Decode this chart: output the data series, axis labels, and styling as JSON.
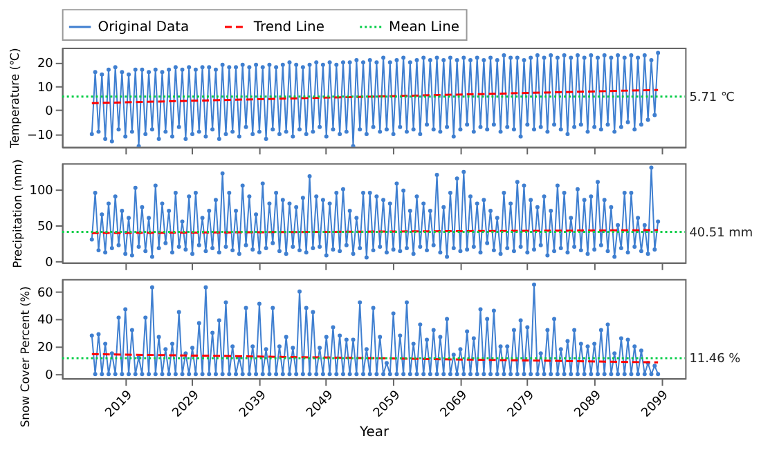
{
  "chart_data": [
    {
      "type": "line",
      "ylabel": "Temperature (℃)",
      "xlim": [
        2009.6,
        2102.6
      ],
      "xticks": [
        2019,
        2029,
        2039,
        2049,
        2059,
        2069,
        2079,
        2089,
        2099
      ],
      "ylim": [
        -15.3,
        26.2
      ],
      "yticks": [
        -10,
        0,
        10,
        20
      ],
      "tick_labels": "y",
      "legend": "top",
      "x": [
        2014.05,
        2014.55,
        2015.05,
        2015.55,
        2016.05,
        2016.55,
        2017.05,
        2017.55,
        2018.05,
        2018.55,
        2019.05,
        2019.55,
        2020.05,
        2020.55,
        2021.05,
        2021.55,
        2022.05,
        2022.55,
        2023.05,
        2023.55,
        2024.05,
        2024.55,
        2025.05,
        2025.55,
        2026.05,
        2026.55,
        2027.05,
        2027.55,
        2028.05,
        2028.55,
        2029.05,
        2029.55,
        2030.05,
        2030.55,
        2031.05,
        2031.55,
        2032.05,
        2032.55,
        2033.05,
        2033.55,
        2034.05,
        2034.55,
        2035.05,
        2035.55,
        2036.05,
        2036.55,
        2037.05,
        2037.55,
        2038.05,
        2038.55,
        2039.05,
        2039.55,
        2040.05,
        2040.55,
        2041.05,
        2041.55,
        2042.05,
        2042.55,
        2043.05,
        2043.55,
        2044.05,
        2044.55,
        2045.05,
        2045.55,
        2046.05,
        2046.55,
        2047.05,
        2047.55,
        2048.05,
        2048.55,
        2049.05,
        2049.55,
        2050.05,
        2050.55,
        2051.05,
        2051.55,
        2052.05,
        2052.55,
        2053.05,
        2053.55,
        2054.05,
        2054.55,
        2055.05,
        2055.55,
        2056.05,
        2056.55,
        2057.05,
        2057.55,
        2058.05,
        2058.55,
        2059.05,
        2059.55,
        2060.05,
        2060.55,
        2061.05,
        2061.55,
        2062.05,
        2062.55,
        2063.05,
        2063.55,
        2064.05,
        2064.55,
        2065.05,
        2065.55,
        2066.05,
        2066.55,
        2067.05,
        2067.55,
        2068.05,
        2068.55,
        2069.05,
        2069.55,
        2070.05,
        2070.55,
        2071.05,
        2071.55,
        2072.05,
        2072.55,
        2073.05,
        2073.55,
        2074.05,
        2074.55,
        2075.05,
        2075.55,
        2076.05,
        2076.55,
        2077.05,
        2077.55,
        2078.05,
        2078.55,
        2079.05,
        2079.55,
        2080.05,
        2080.55,
        2081.05,
        2081.55,
        2082.05,
        2082.55,
        2083.05,
        2083.55,
        2084.05,
        2084.55,
        2085.05,
        2085.55,
        2086.05,
        2086.55,
        2087.05,
        2087.55,
        2088.05,
        2088.55,
        2089.05,
        2089.55,
        2090.05,
        2090.55,
        2091.05,
        2091.55,
        2092.05,
        2092.55,
        2093.05,
        2093.55,
        2094.05,
        2094.55,
        2095.05,
        2095.55,
        2096.05,
        2096.55,
        2097.05,
        2097.55,
        2098.05,
        2098.55
      ],
      "series": [
        {
          "name": "Original Data",
          "color": "#3f7fd0",
          "marker": "circle",
          "line_style": "solid",
          "values": [
            -10,
            16,
            -9,
            15,
            -12,
            17,
            -13,
            18,
            -8,
            16,
            -11,
            15,
            -9,
            17,
            -15,
            17,
            -10,
            16,
            -8,
            17,
            -12,
            16,
            -9,
            17,
            -11,
            18,
            -7,
            17,
            -12,
            18,
            -10,
            17,
            -9,
            18,
            -11,
            18,
            -8,
            17,
            -12,
            19,
            -10,
            18,
            -9,
            18,
            -11,
            19,
            -7,
            18,
            -10,
            19,
            -9,
            18,
            -12,
            19,
            -8,
            18,
            -10,
            19,
            -9,
            20,
            -11,
            19,
            -8,
            18,
            -10,
            19,
            -9,
            20,
            -7,
            19,
            -11,
            20,
            -8,
            19,
            -10,
            20,
            -9,
            20,
            -15,
            21,
            -8,
            20,
            -10,
            21,
            -7,
            20,
            -9,
            22,
            -8,
            20,
            -10,
            21,
            -7,
            22,
            -9,
            20,
            -8,
            21,
            -10,
            22,
            -6,
            21,
            -8,
            22,
            -9,
            21,
            -7,
            22,
            -11,
            21,
            -8,
            22,
            -6,
            21,
            -9,
            22,
            -7,
            21,
            -8,
            22,
            -6,
            21,
            -9,
            23,
            -7,
            22,
            -8,
            22,
            -11,
            21,
            -6,
            22,
            -8,
            23,
            -7,
            22,
            -9,
            23,
            -6,
            22,
            -8,
            23,
            -10,
            22,
            -7,
            23,
            -6,
            22,
            -9,
            23,
            -7,
            22,
            -8,
            23,
            -6,
            22,
            -9,
            23,
            -7,
            22,
            -5,
            23,
            -8,
            22,
            -6,
            23,
            -4,
            21,
            -2,
            24
          ]
        },
        {
          "name": "Trend Line",
          "color": "#ff0000",
          "line_style": "dashed",
          "x": [
            2014.05,
            2098.55
          ],
          "values": [
            3.0,
            8.5
          ]
        },
        {
          "name": "Mean Line",
          "color": "#00cc44",
          "line_style": "dotted",
          "x": [
            2009.6,
            2102.6
          ],
          "values": [
            5.71,
            5.71
          ]
        }
      ],
      "annotations": [
        "5.71 ℃"
      ]
    },
    {
      "type": "line",
      "ylabel": "Precipitation (mm)",
      "xlim": [
        2009.6,
        2102.6
      ],
      "xticks": [
        2019,
        2029,
        2039,
        2049,
        2059,
        2069,
        2079,
        2089,
        2099
      ],
      "ylim": [
        -2,
        136
      ],
      "yticks": [
        0,
        50,
        100
      ],
      "tick_labels": "y",
      "x": [
        2014.05,
        2014.55,
        2015.05,
        2015.55,
        2016.05,
        2016.55,
        2017.05,
        2017.55,
        2018.05,
        2018.55,
        2019.05,
        2019.55,
        2020.05,
        2020.55,
        2021.05,
        2021.55,
        2022.05,
        2022.55,
        2023.05,
        2023.55,
        2024.05,
        2024.55,
        2025.05,
        2025.55,
        2026.05,
        2026.55,
        2027.05,
        2027.55,
        2028.05,
        2028.55,
        2029.05,
        2029.55,
        2030.05,
        2030.55,
        2031.05,
        2031.55,
        2032.05,
        2032.55,
        2033.05,
        2033.55,
        2034.05,
        2034.55,
        2035.05,
        2035.55,
        2036.05,
        2036.55,
        2037.05,
        2037.55,
        2038.05,
        2038.55,
        2039.05,
        2039.55,
        2040.05,
        2040.55,
        2041.05,
        2041.55,
        2042.05,
        2042.55,
        2043.05,
        2043.55,
        2044.05,
        2044.55,
        2045.05,
        2045.55,
        2046.05,
        2046.55,
        2047.05,
        2047.55,
        2048.05,
        2048.55,
        2049.05,
        2049.55,
        2050.05,
        2050.55,
        2051.05,
        2051.55,
        2052.05,
        2052.55,
        2053.05,
        2053.55,
        2054.05,
        2054.55,
        2055.05,
        2055.55,
        2056.05,
        2056.55,
        2057.05,
        2057.55,
        2058.05,
        2058.55,
        2059.05,
        2059.55,
        2060.05,
        2060.55,
        2061.05,
        2061.55,
        2062.05,
        2062.55,
        2063.05,
        2063.55,
        2064.05,
        2064.55,
        2065.05,
        2065.55,
        2066.05,
        2066.55,
        2067.05,
        2067.55,
        2068.05,
        2068.55,
        2069.05,
        2069.55,
        2070.05,
        2070.55,
        2071.05,
        2071.55,
        2072.05,
        2072.55,
        2073.05,
        2073.55,
        2074.05,
        2074.55,
        2075.05,
        2075.55,
        2076.05,
        2076.55,
        2077.05,
        2077.55,
        2078.05,
        2078.55,
        2079.05,
        2079.55,
        2080.05,
        2080.55,
        2081.05,
        2081.55,
        2082.05,
        2082.55,
        2083.05,
        2083.55,
        2084.05,
        2084.55,
        2085.05,
        2085.55,
        2086.05,
        2086.55,
        2087.05,
        2087.55,
        2088.05,
        2088.55,
        2089.05,
        2089.55,
        2090.05,
        2090.55,
        2091.05,
        2091.55,
        2092.05,
        2092.55,
        2093.05,
        2093.55,
        2094.05,
        2094.55,
        2095.05,
        2095.55,
        2096.05,
        2096.55,
        2097.05,
        2097.55,
        2098.05,
        2098.55
      ],
      "series": [
        {
          "color": "#3f7fd0",
          "marker": "circle",
          "line_style": "solid",
          "values": [
            30,
            95,
            15,
            65,
            12,
            80,
            18,
            90,
            22,
            70,
            10,
            60,
            8,
            102,
            20,
            75,
            14,
            60,
            6,
            105,
            18,
            80,
            25,
            70,
            12,
            95,
            20,
            55,
            16,
            90,
            10,
            95,
            22,
            60,
            14,
            70,
            18,
            85,
            12,
            122,
            20,
            95,
            15,
            70,
            10,
            105,
            22,
            90,
            16,
            65,
            12,
            108,
            18,
            80,
            25,
            95,
            14,
            85,
            10,
            80,
            20,
            75,
            15,
            88,
            12,
            118,
            18,
            90,
            20,
            85,
            8,
            80,
            16,
            95,
            14,
            100,
            22,
            70,
            10,
            60,
            18,
            95,
            5,
            95,
            15,
            90,
            20,
            85,
            12,
            80,
            16,
            108,
            14,
            98,
            18,
            70,
            10,
            90,
            20,
            80,
            15,
            70,
            22,
            120,
            12,
            75,
            6,
            95,
            18,
            115,
            14,
            124,
            16,
            90,
            20,
            80,
            12,
            85,
            25,
            70,
            15,
            60,
            10,
            95,
            18,
            80,
            14,
            110,
            20,
            105,
            12,
            85,
            16,
            75,
            22,
            90,
            8,
            70,
            14,
            105,
            18,
            95,
            12,
            60,
            20,
            100,
            15,
            85,
            10,
            90,
            16,
            110,
            22,
            85,
            14,
            75,
            6,
            50,
            18,
            95,
            12,
            95,
            20,
            60,
            14,
            50,
            10,
            130,
            16,
            55
          ]
        },
        {
          "color": "#ff0000",
          "line_style": "dashed",
          "x": [
            2014.05,
            2098.55
          ],
          "values": [
            39,
            43
          ]
        },
        {
          "color": "#00cc44",
          "line_style": "dotted",
          "x": [
            2009.6,
            2102.6
          ],
          "values": [
            40.51,
            40.51
          ]
        }
      ],
      "annotations": [
        "40.51 mm"
      ]
    },
    {
      "type": "line",
      "ylabel": "Snow Cover Percent (%)",
      "xlabel": "Year",
      "xlim": [
        2009.6,
        2102.6
      ],
      "xticks": [
        2019,
        2029,
        2039,
        2049,
        2059,
        2069,
        2079,
        2089,
        2099
      ],
      "ylim": [
        -3,
        69
      ],
      "yticks": [
        0,
        20,
        40,
        60
      ],
      "x": [
        2014.05,
        2014.55,
        2015.05,
        2015.55,
        2016.05,
        2016.55,
        2017.05,
        2017.55,
        2018.05,
        2018.55,
        2019.05,
        2019.55,
        2020.05,
        2020.55,
        2021.05,
        2021.55,
        2022.05,
        2022.55,
        2023.05,
        2023.55,
        2024.05,
        2024.55,
        2025.05,
        2025.55,
        2026.05,
        2026.55,
        2027.05,
        2027.55,
        2028.05,
        2028.55,
        2029.05,
        2029.55,
        2030.05,
        2030.55,
        2031.05,
        2031.55,
        2032.05,
        2032.55,
        2033.05,
        2033.55,
        2034.05,
        2034.55,
        2035.05,
        2035.55,
        2036.05,
        2036.55,
        2037.05,
        2037.55,
        2038.05,
        2038.55,
        2039.05,
        2039.55,
        2040.05,
        2040.55,
        2041.05,
        2041.55,
        2042.05,
        2042.55,
        2043.05,
        2043.55,
        2044.05,
        2044.55,
        2045.05,
        2045.55,
        2046.05,
        2046.55,
        2047.05,
        2047.55,
        2048.05,
        2048.55,
        2049.05,
        2049.55,
        2050.05,
        2050.55,
        2051.05,
        2051.55,
        2052.05,
        2052.55,
        2053.05,
        2053.55,
        2054.05,
        2054.55,
        2055.05,
        2055.55,
        2056.05,
        2056.55,
        2057.05,
        2057.55,
        2058.05,
        2058.55,
        2059.05,
        2059.55,
        2060.05,
        2060.55,
        2061.05,
        2061.55,
        2062.05,
        2062.55,
        2063.05,
        2063.55,
        2064.05,
        2064.55,
        2065.05,
        2065.55,
        2066.05,
        2066.55,
        2067.05,
        2067.55,
        2068.05,
        2068.55,
        2069.05,
        2069.55,
        2070.05,
        2070.55,
        2071.05,
        2071.55,
        2072.05,
        2072.55,
        2073.05,
        2073.55,
        2074.05,
        2074.55,
        2075.05,
        2075.55,
        2076.05,
        2076.55,
        2077.05,
        2077.55,
        2078.05,
        2078.55,
        2079.05,
        2079.55,
        2080.05,
        2080.55,
        2081.05,
        2081.55,
        2082.05,
        2082.55,
        2083.05,
        2083.55,
        2084.05,
        2084.55,
        2085.05,
        2085.55,
        2086.05,
        2086.55,
        2087.05,
        2087.55,
        2088.05,
        2088.55,
        2089.05,
        2089.55,
        2090.05,
        2090.55,
        2091.05,
        2091.55,
        2092.05,
        2092.55,
        2093.05,
        2093.55,
        2094.05,
        2094.55,
        2095.05,
        2095.55,
        2096.05,
        2096.55,
        2097.05,
        2097.55,
        2098.05,
        2098.55
      ],
      "series": [
        {
          "color": "#3f7fd0",
          "marker": "circle",
          "line_style": "solid",
          "values": [
            28,
            0,
            29,
            0,
            22,
            0,
            15,
            0,
            41,
            0,
            47,
            0,
            32,
            0,
            12,
            0,
            41,
            0,
            63,
            0,
            27,
            0,
            18,
            0,
            22,
            0,
            45,
            0,
            15,
            0,
            19,
            0,
            37,
            0,
            63,
            0,
            30,
            0,
            39,
            0,
            52,
            0,
            20,
            0,
            12,
            0,
            48,
            0,
            20,
            0,
            51,
            0,
            18,
            0,
            48,
            0,
            20,
            0,
            27,
            0,
            19,
            0,
            60,
            0,
            48,
            0,
            45,
            0,
            19,
            0,
            27,
            0,
            34,
            0,
            28,
            0,
            25,
            0,
            25,
            0,
            52,
            0,
            18,
            0,
            48,
            0,
            27,
            0,
            8,
            0,
            44,
            0,
            28,
            0,
            52,
            0,
            22,
            0,
            36,
            0,
            25,
            0,
            32,
            0,
            27,
            0,
            40,
            0,
            14,
            0,
            18,
            0,
            31,
            0,
            26,
            0,
            47,
            0,
            40,
            0,
            46,
            0,
            20,
            0,
            20,
            0,
            32,
            0,
            39,
            0,
            34,
            0,
            65,
            0,
            15,
            0,
            32,
            0,
            40,
            0,
            18,
            0,
            24,
            0,
            32,
            0,
            22,
            0,
            20,
            0,
            22,
            0,
            32,
            0,
            36,
            0,
            15,
            0,
            26,
            0,
            25,
            0,
            20,
            0,
            17,
            0,
            8,
            0,
            6,
            0
          ]
        },
        {
          "color": "#ff0000",
          "line_style": "dashed",
          "x": [
            2014.05,
            2098.55
          ],
          "values": [
            14.5,
            8.5
          ]
        },
        {
          "color": "#00cc44",
          "line_style": "dotted",
          "x": [
            2009.6,
            2102.6
          ],
          "values": [
            11.46,
            11.46
          ]
        }
      ],
      "annotations": [
        "11.46 %"
      ]
    }
  ]
}
